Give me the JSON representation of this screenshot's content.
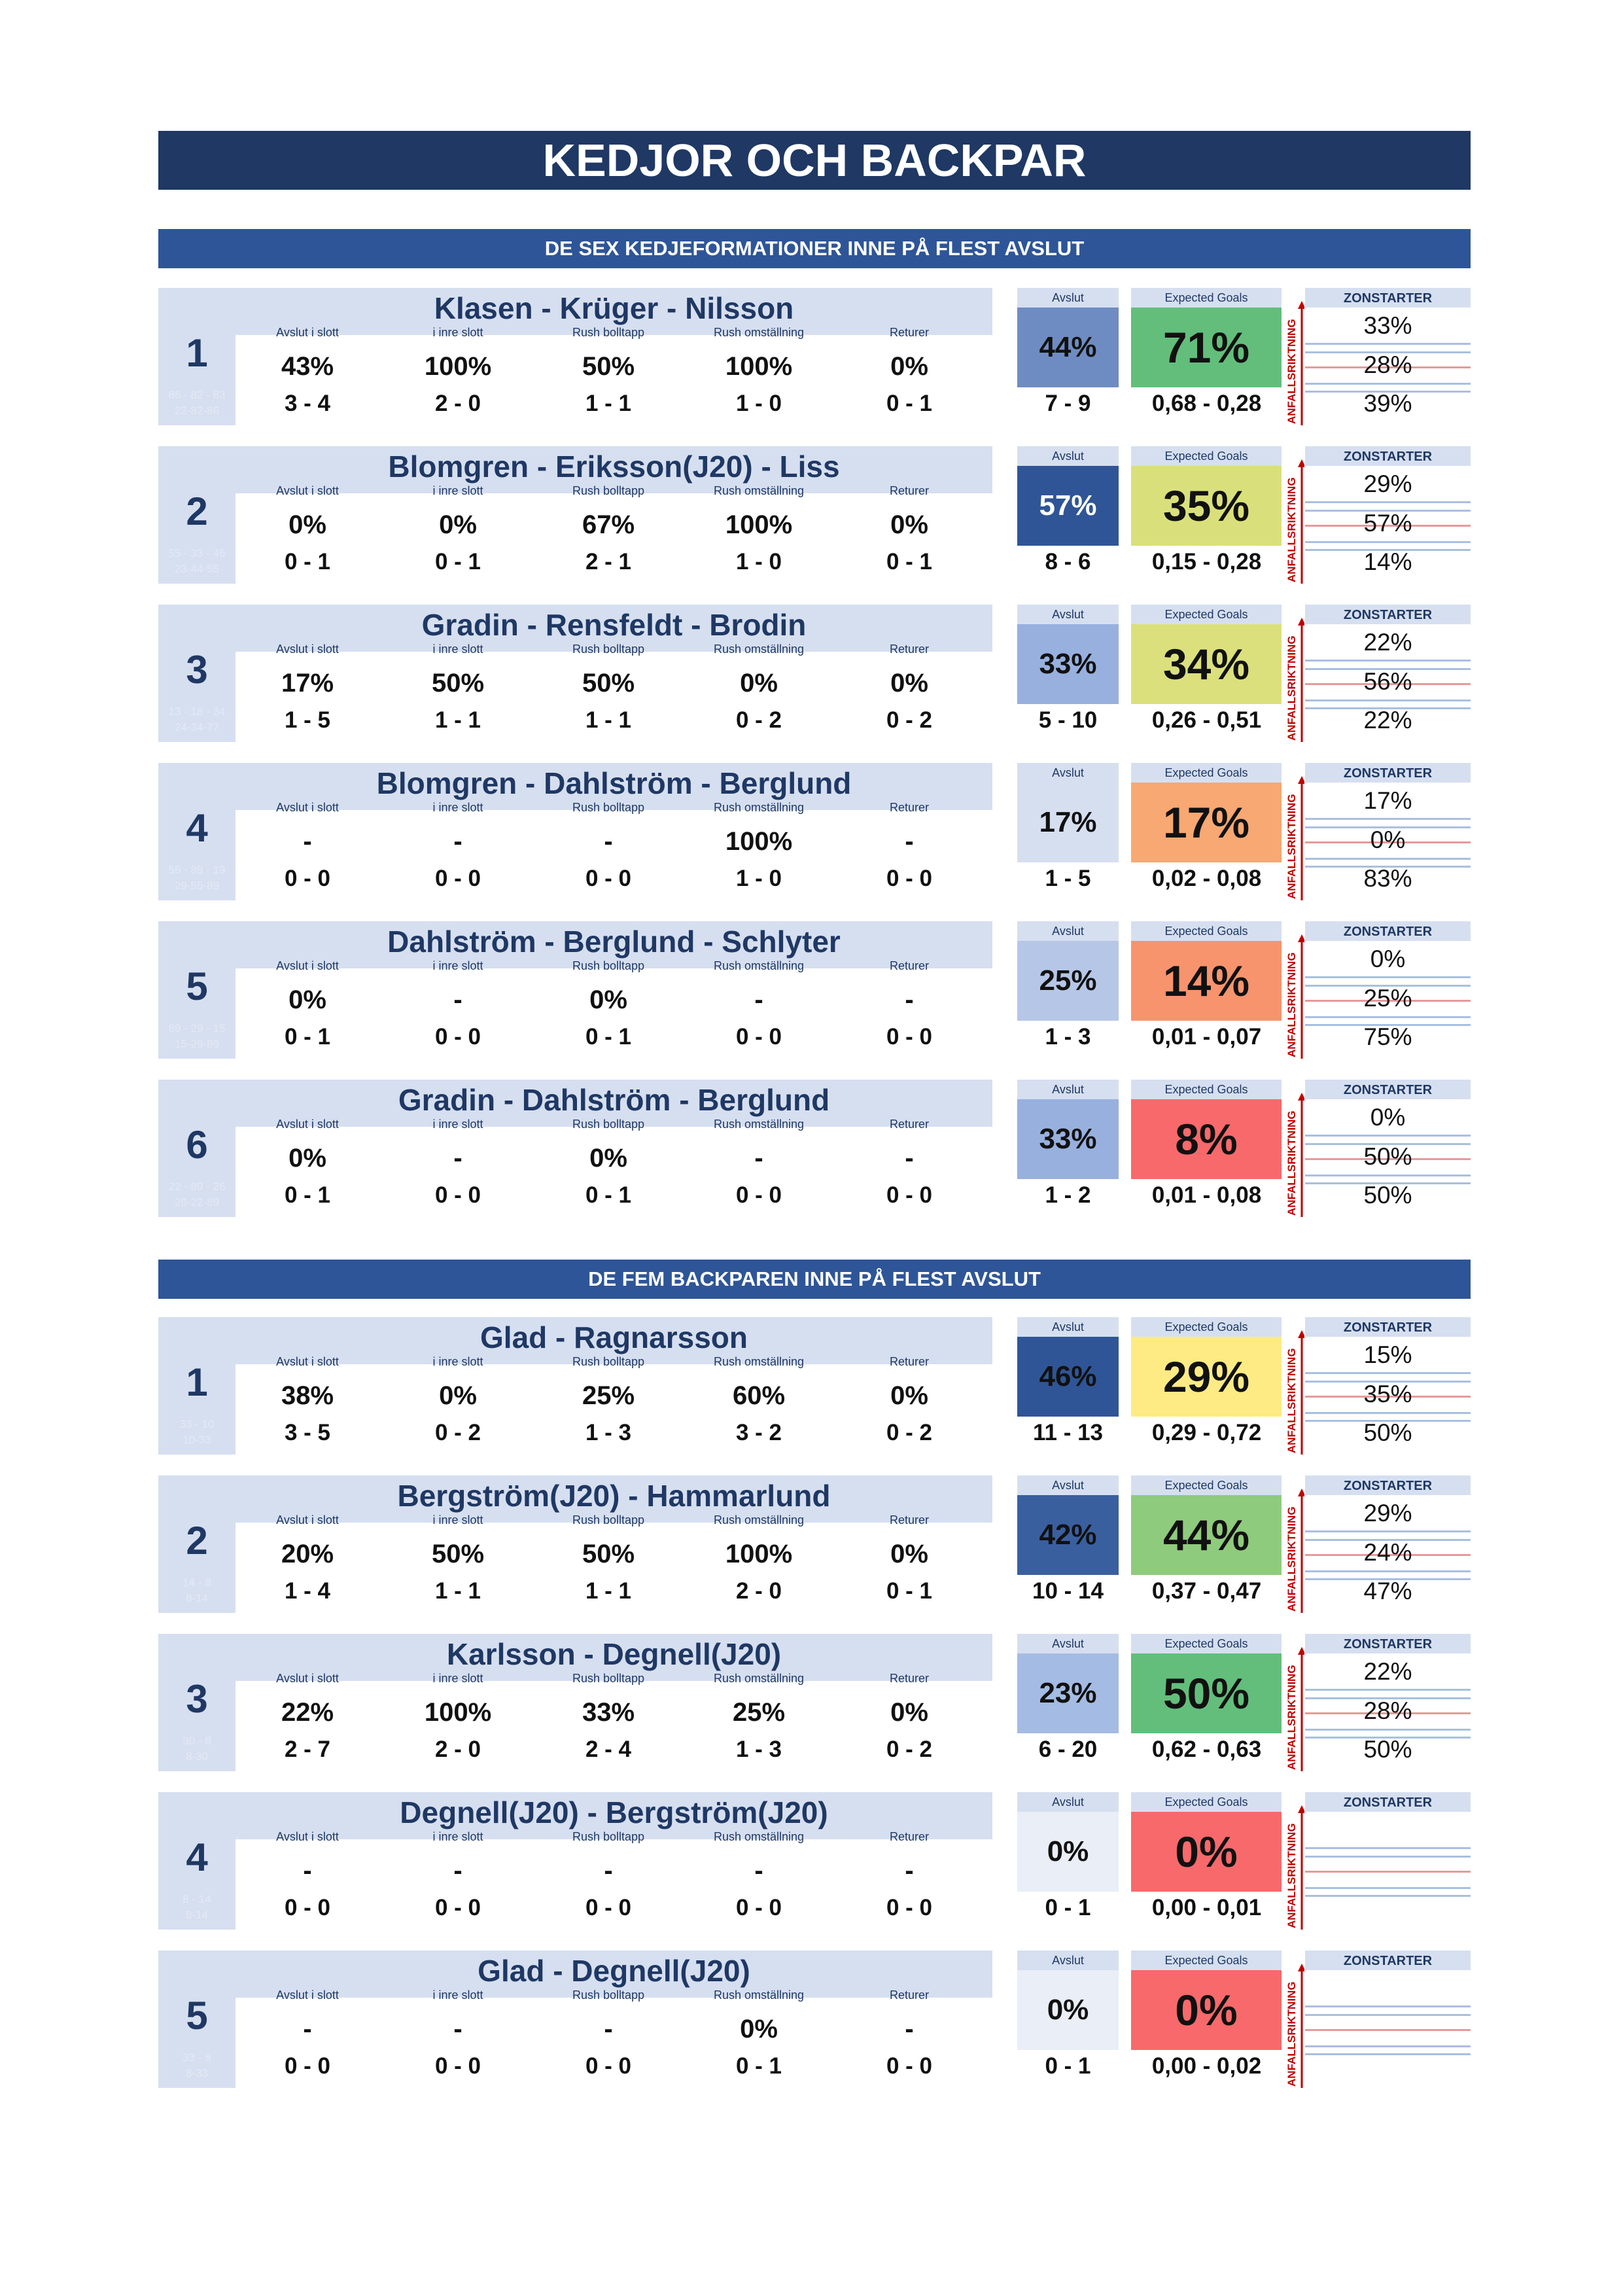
{
  "title": "KEDJOR OCH BACKPAR",
  "labels": {
    "cols": [
      "Avslut i slott",
      "i inre slott",
      "Rush bolltapp",
      "Rush omställning",
      "Returer"
    ],
    "avslut": "Avslut",
    "xg": "Expected Goals",
    "zone": "ZONSTARTER",
    "attack": "ANFALLSRIKTNING"
  },
  "sections": [
    {
      "header": "DE SEX KEDJEFORMATIONER INNE PÅ FLEST AVSLUT",
      "rows": [
        {
          "rank": "1",
          "sub1": "86 - 82 - 83",
          "sub2": "22-82-86",
          "name": "Klasen - Krüger - Nilsson",
          "stats": [
            {
              "pct": "43%",
              "cnt": "3  -  4"
            },
            {
              "pct": "100%",
              "cnt": "2  -  0"
            },
            {
              "pct": "50%",
              "cnt": "1  -  1"
            },
            {
              "pct": "100%",
              "cnt": "1  -  0"
            },
            {
              "pct": "0%",
              "cnt": "0  -  1"
            }
          ],
          "avslut": "44%",
          "avslut_cnt": "7  -  9",
          "xg": "71%",
          "xg_cnt": "0,68 -  0,28",
          "zone": [
            "33%",
            "28%",
            "39%"
          ],
          "avslut_color": "#6f8cc2",
          "avslut_text": "#111111",
          "xg_color": "#63be7b"
        },
        {
          "rank": "2",
          "sub1": "55 - 33 - 46",
          "sub2": "23-44-55",
          "name": "Blomgren - Eriksson(J20) - Liss",
          "stats": [
            {
              "pct": "0%",
              "cnt": "0  -  1"
            },
            {
              "pct": "0%",
              "cnt": "0  -  1"
            },
            {
              "pct": "67%",
              "cnt": "2  -  1"
            },
            {
              "pct": "100%",
              "cnt": "1  -  0"
            },
            {
              "pct": "0%",
              "cnt": "0  -  1"
            }
          ],
          "avslut": "57%",
          "avslut_cnt": "8  -  6",
          "xg": "35%",
          "xg_cnt": "0,15 -  0,28",
          "zone": [
            "29%",
            "57%",
            "14%"
          ],
          "avslut_color": "#2f5597",
          "avslut_text": "#ffffff",
          "xg_color": "#d9e07b"
        },
        {
          "rank": "3",
          "sub1": "13 - 18 - 34",
          "sub2": "24-34-77",
          "name": "Gradin - Rensfeldt - Brodin",
          "stats": [
            {
              "pct": "17%",
              "cnt": "1  -  5"
            },
            {
              "pct": "50%",
              "cnt": "1  -  1"
            },
            {
              "pct": "50%",
              "cnt": "1  -  1"
            },
            {
              "pct": "0%",
              "cnt": "0  -  2"
            },
            {
              "pct": "0%",
              "cnt": "0  -  2"
            }
          ],
          "avslut": "33%",
          "avslut_cnt": "5  -  10",
          "xg": "34%",
          "xg_cnt": "0,26 -  0,51",
          "zone": [
            "22%",
            "56%",
            "22%"
          ],
          "avslut_color": "#97b0de",
          "avslut_text": "#111111",
          "xg_color": "#dbe07c"
        },
        {
          "rank": "4",
          "sub1": "55 - 89 - 19",
          "sub2": "29-55-89",
          "name": "Blomgren - Dahlström - Berglund",
          "stats": [
            {
              "pct": "-",
              "cnt": "0  -  0"
            },
            {
              "pct": "-",
              "cnt": "0  -  0"
            },
            {
              "pct": "-",
              "cnt": "0  -  0"
            },
            {
              "pct": "100%",
              "cnt": "1  -  0"
            },
            {
              "pct": "-",
              "cnt": "0  -  0"
            }
          ],
          "avslut": "17%",
          "avslut_cnt": "1  -  5",
          "xg": "17%",
          "xg_cnt": "0,02 -  0,08",
          "zone": [
            "17%",
            "0%",
            "83%"
          ],
          "avslut_color": "#d6dff0",
          "avslut_text": "#111111",
          "xg_color": "#f8a872"
        },
        {
          "rank": "5",
          "sub1": "89 - 29 - 15",
          "sub2": "15-29-89",
          "name": "Dahlström - Berglund - Schlyter",
          "stats": [
            {
              "pct": "0%",
              "cnt": "0  -  1"
            },
            {
              "pct": "-",
              "cnt": "0  -  0"
            },
            {
              "pct": "0%",
              "cnt": "0  -  1"
            },
            {
              "pct": "-",
              "cnt": "0  -  0"
            },
            {
              "pct": "-",
              "cnt": "0  -  0"
            }
          ],
          "avslut": "25%",
          "avslut_cnt": "1  -  3",
          "xg": "14%",
          "xg_cnt": "0,01 -  0,07",
          "zone": [
            "0%",
            "25%",
            "75%"
          ],
          "avslut_color": "#b5c6e7",
          "avslut_text": "#111111",
          "xg_color": "#f7946e"
        },
        {
          "rank": "6",
          "sub1": "22 - 89 - 26",
          "sub2": "26-22-89",
          "name": "Gradin - Dahlström - Berglund",
          "stats": [
            {
              "pct": "0%",
              "cnt": "0  -  1"
            },
            {
              "pct": "-",
              "cnt": "0  -  0"
            },
            {
              "pct": "0%",
              "cnt": "0  -  1"
            },
            {
              "pct": "-",
              "cnt": "0  -  0"
            },
            {
              "pct": "-",
              "cnt": "0  -  0"
            }
          ],
          "avslut": "33%",
          "avslut_cnt": "1  -  2",
          "xg": "8%",
          "xg_cnt": "0,01 -  0,08",
          "zone": [
            "0%",
            "50%",
            "50%"
          ],
          "avslut_color": "#97b0de",
          "avslut_text": "#111111",
          "xg_color": "#f8696b"
        }
      ]
    },
    {
      "header": "DE FEM BACKPAREN INNE PÅ FLEST AVSLUT",
      "rows": [
        {
          "rank": "1",
          "sub1": "33 - 10",
          "sub2": "10-33",
          "name": "Glad - Ragnarsson",
          "stats": [
            {
              "pct": "38%",
              "cnt": "3  -  5"
            },
            {
              "pct": "0%",
              "cnt": "0  -  2"
            },
            {
              "pct": "25%",
              "cnt": "1  -  3"
            },
            {
              "pct": "60%",
              "cnt": "3  -  2"
            },
            {
              "pct": "0%",
              "cnt": "0  -  2"
            }
          ],
          "avslut": "46%",
          "avslut_cnt": "11 -  13",
          "xg": "29%",
          "xg_cnt": "0,29 -  0,72",
          "zone": [
            "15%",
            "35%",
            "50%"
          ],
          "avslut_color": "#2f5597",
          "avslut_text": "#111111",
          "xg_color": "#ffeb84"
        },
        {
          "rank": "2",
          "sub1": "14 - 8",
          "sub2": "8-14",
          "name": "Bergström(J20) - Hammarlund",
          "stats": [
            {
              "pct": "20%",
              "cnt": "1  -  4"
            },
            {
              "pct": "50%",
              "cnt": "1  -  1"
            },
            {
              "pct": "50%",
              "cnt": "1  -  1"
            },
            {
              "pct": "100%",
              "cnt": "2  -  0"
            },
            {
              "pct": "0%",
              "cnt": "0  -  1"
            }
          ],
          "avslut": "42%",
          "avslut_cnt": "10 -  14",
          "xg": "44%",
          "xg_cnt": "0,37 -  0,47",
          "zone": [
            "29%",
            "24%",
            "47%"
          ],
          "avslut_color": "#3a5f9f",
          "avslut_text": "#111111",
          "xg_color": "#8fcb7c"
        },
        {
          "rank": "3",
          "sub1": "30 - 8",
          "sub2": "8-30",
          "name": "Karlsson - Degnell(J20)",
          "stats": [
            {
              "pct": "22%",
              "cnt": "2  -  7"
            },
            {
              "pct": "100%",
              "cnt": "2  -  0"
            },
            {
              "pct": "33%",
              "cnt": "2  -  4"
            },
            {
              "pct": "25%",
              "cnt": "1  -  3"
            },
            {
              "pct": "0%",
              "cnt": "0  -  2"
            }
          ],
          "avslut": "23%",
          "avslut_cnt": "6  -  20",
          "xg": "50%",
          "xg_cnt": "0,62 -  0,63",
          "zone": [
            "22%",
            "28%",
            "50%"
          ],
          "avslut_color": "#a4bbe3",
          "avslut_text": "#111111",
          "xg_color": "#63be7b"
        },
        {
          "rank": "4",
          "sub1": "8 - 14",
          "sub2": "8-14",
          "name": "Degnell(J20) - Bergström(J20)",
          "stats": [
            {
              "pct": "-",
              "cnt": "0  -  0"
            },
            {
              "pct": "-",
              "cnt": "0  -  0"
            },
            {
              "pct": "-",
              "cnt": "0  -  0"
            },
            {
              "pct": "-",
              "cnt": "0  -  0"
            },
            {
              "pct": "-",
              "cnt": "0  -  0"
            }
          ],
          "avslut": "0%",
          "avslut_cnt": "0  -  1",
          "xg": "0%",
          "xg_cnt": "0,00 -  0,01",
          "zone": [
            "",
            "",
            ""
          ],
          "avslut_color": "#e9eef7",
          "avslut_text": "#111111",
          "xg_color": "#f8696b"
        },
        {
          "rank": "5",
          "sub1": "33 - 8",
          "sub2": "8-33",
          "name": "Glad - Degnell(J20)",
          "stats": [
            {
              "pct": "-",
              "cnt": "0  -  0"
            },
            {
              "pct": "-",
              "cnt": "0  -  0"
            },
            {
              "pct": "-",
              "cnt": "0  -  0"
            },
            {
              "pct": "0%",
              "cnt": "0  -  1"
            },
            {
              "pct": "-",
              "cnt": "0  -  0"
            }
          ],
          "avslut": "0%",
          "avslut_cnt": "0  -  1",
          "xg": "0%",
          "xg_cnt": "0,00 -  0,02",
          "zone": [
            "",
            "",
            ""
          ],
          "avslut_color": "#e9eef7",
          "avslut_text": "#111111",
          "xg_color": "#f8696b"
        }
      ]
    }
  ]
}
